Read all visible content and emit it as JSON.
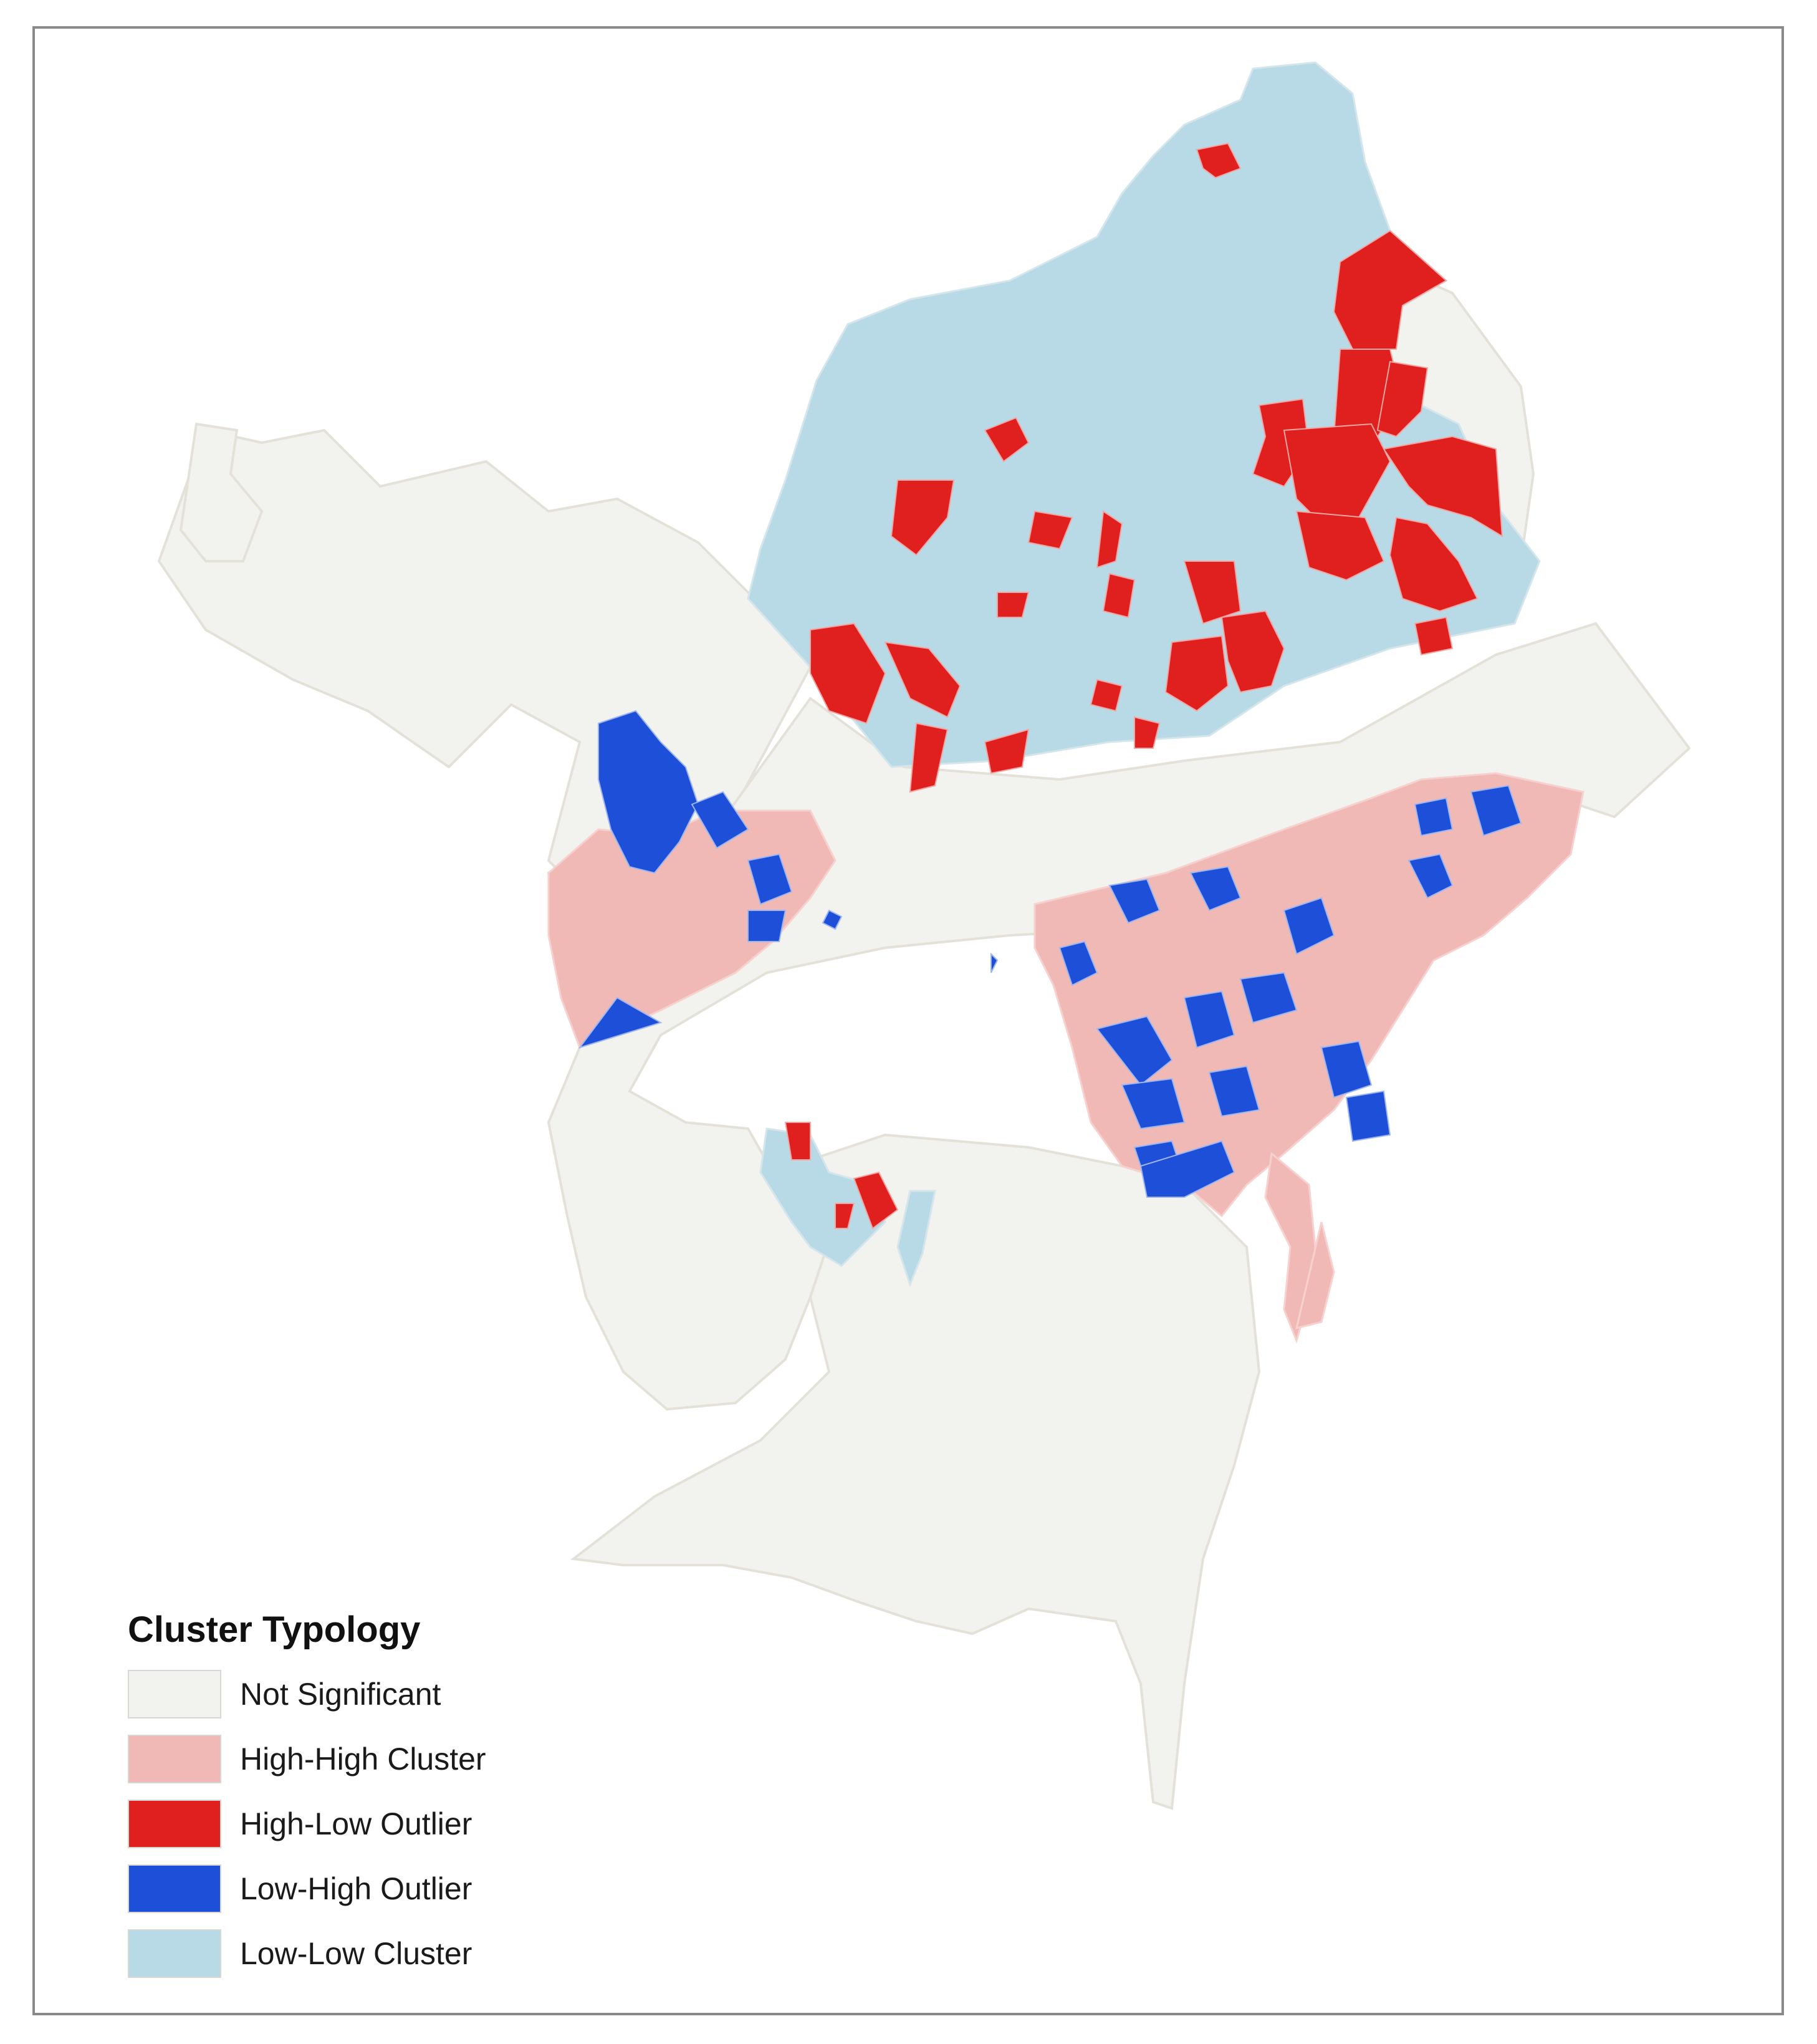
{
  "colors": {
    "not_significant": "#f2f2ee",
    "high_high": "#f0b9b6",
    "high_low": "#e0201e",
    "low_high": "#1e4fd8",
    "low_low": "#b8dae6",
    "boundary": "#e4e1d8",
    "frame": "#8a8a8a"
  },
  "legend": {
    "title": "Cluster Typology",
    "items": [
      {
        "label": "Not Significant",
        "color": "#f2f2ee"
      },
      {
        "label": "High-High Cluster",
        "color": "#f0b9b6"
      },
      {
        "label": "High-Low Outlier",
        "color": "#e0201e"
      },
      {
        "label": "Low-High Outlier",
        "color": "#1e4fd8"
      },
      {
        "label": "Low-Low Cluster",
        "color": "#b8dae6"
      }
    ]
  }
}
